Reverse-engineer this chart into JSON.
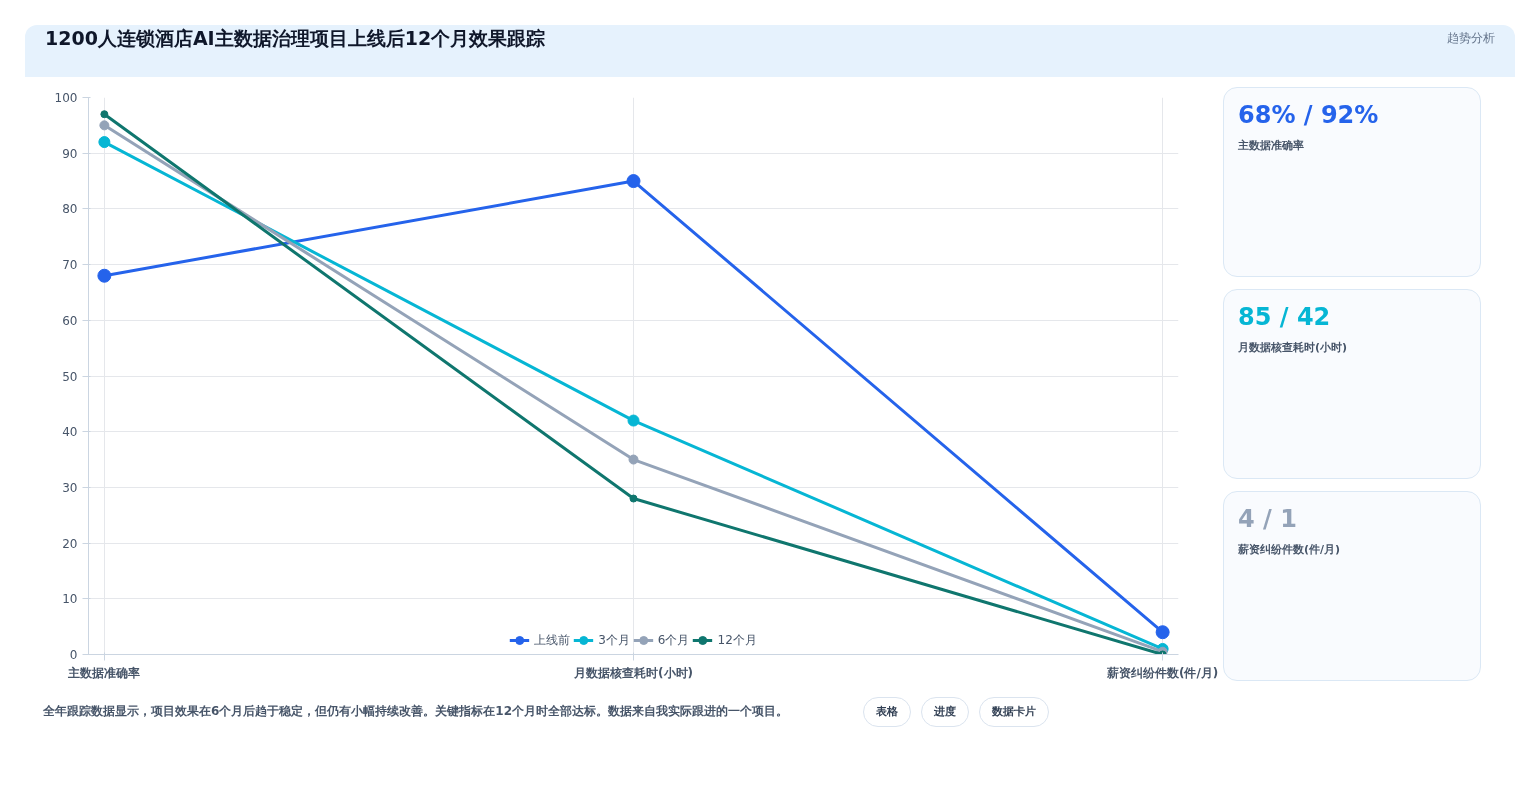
{
  "chart_data": [
    {
      "type": "line",
      "title": "1200人连锁酒店AI主数据治理项目上线后12个月效果跟踪",
      "categories": [
        "主数据准确率",
        "月数据核查耗时(小时)",
        "薪资纠纷件数(件/月)"
      ],
      "series": [
        {
          "name": "上线前",
          "color": "#2563eb",
          "values": [
            68,
            85,
            4
          ]
        },
        {
          "name": "3个月",
          "color": "#06b6d4",
          "values": [
            92,
            42,
            1
          ]
        },
        {
          "name": "6个月",
          "color": "#94a3b8",
          "values": [
            95,
            35,
            0.5
          ]
        },
        {
          "name": "12个月",
          "color": "#0f766e",
          "values": [
            97,
            28,
            0
          ]
        }
      ],
      "ylim": [
        0,
        100
      ],
      "yticks": [
        0,
        10,
        20,
        30,
        40,
        50,
        60,
        70,
        80,
        90,
        100
      ],
      "grid": true,
      "legend": "bottom",
      "marker": "circle",
      "line_style": "solid",
      "annotations": [
        "趋势分析",
        "全年跟踪数据显示，项目效果在6个月后趋于稳定，但仍有小幅持续改善。关键指标在12个月时全部达标。数据来自我实际跟进的一个项目。",
        "表格",
        "进度",
        "数据卡片"
      ]
    },
    {
      "type": "other",
      "annotations": [
        "68% / 92%",
        "主数据准确率",
        "85 / 42",
        "月数据核查耗时(小时)",
        "4 / 1",
        "薪资纠纷件数(件/月)"
      ]
    }
  ]
}
